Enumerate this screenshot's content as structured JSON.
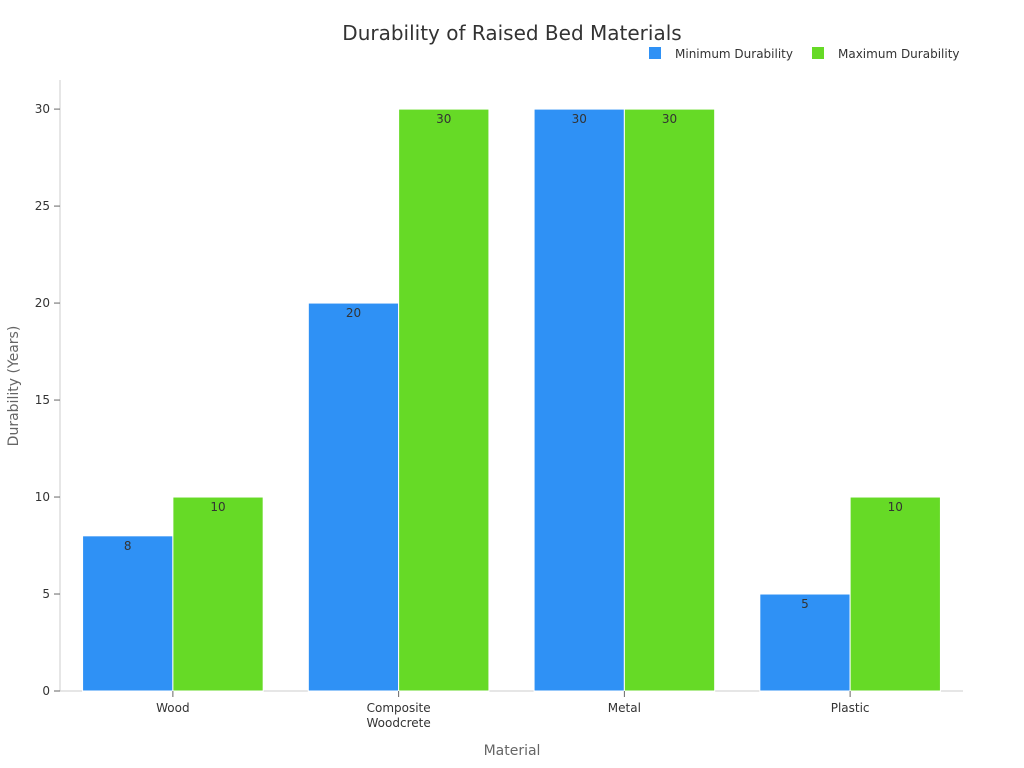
{
  "chart_data": {
    "type": "bar",
    "title": "Durability of Raised Bed Materials",
    "xlabel": "Material",
    "ylabel": "Durability (Years)",
    "categories": [
      [
        "Wood"
      ],
      [
        "Composite",
        "Woodcrete"
      ],
      [
        "Metal"
      ],
      [
        "Plastic"
      ]
    ],
    "series": [
      {
        "name": "Minimum Durability",
        "color": "#2f91f5",
        "values": [
          8,
          20,
          30,
          5
        ]
      },
      {
        "name": "Maximum Durability",
        "color": "#66da26",
        "values": [
          10,
          30,
          30,
          10
        ]
      }
    ],
    "ylim": [
      0,
      31.5
    ],
    "yticks": [
      0,
      5,
      10,
      15,
      20,
      25,
      30
    ],
    "legend_position": "top-right",
    "grid": false
  }
}
